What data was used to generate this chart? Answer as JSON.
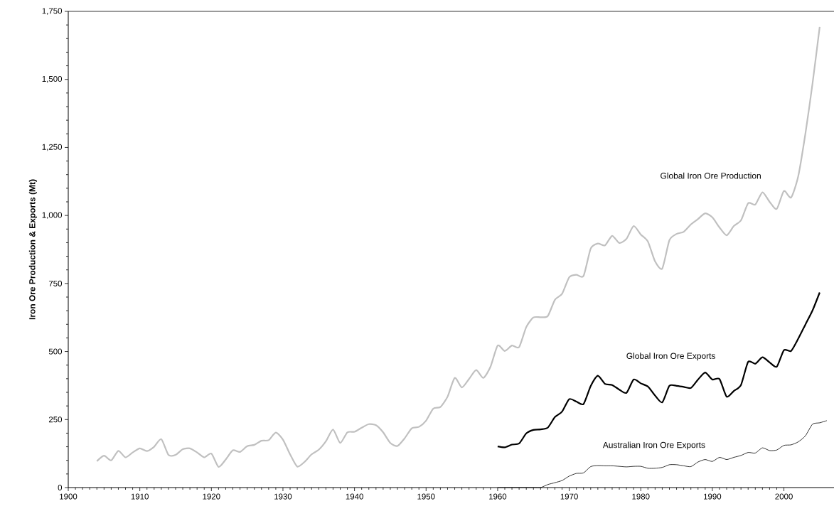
{
  "chart_data": {
    "type": "line",
    "ylabel": "Iron Ore Production & Exports (Mt)",
    "xlim": [
      1900,
      2007
    ],
    "xticks": [
      1900,
      1910,
      1920,
      1930,
      1940,
      1950,
      1960,
      1970,
      1980,
      1990,
      2000
    ],
    "ylim": [
      0,
      1750
    ],
    "yticks": [
      {
        "value": 0,
        "label": "0"
      },
      {
        "value": 250,
        "label": "250"
      },
      {
        "value": 500,
        "label": "500"
      },
      {
        "value": 750,
        "label": "750"
      },
      {
        "value": 1000,
        "label": "1,000"
      },
      {
        "value": 1250,
        "label": "1,250"
      },
      {
        "value": 1500,
        "label": "1,500"
      },
      {
        "value": 1750,
        "label": "1,750"
      }
    ],
    "grid": false,
    "legend": false,
    "marker": "none",
    "line_style": "solid",
    "series": [
      {
        "name": "Global Iron Ore Production",
        "color": "#c0c0c0",
        "x": [
          1904,
          1905,
          1906,
          1907,
          1908,
          1909,
          1910,
          1911,
          1912,
          1913,
          1914,
          1915,
          1916,
          1917,
          1918,
          1919,
          1920,
          1921,
          1922,
          1923,
          1924,
          1925,
          1926,
          1927,
          1928,
          1929,
          1930,
          1931,
          1932,
          1933,
          1934,
          1935,
          1936,
          1937,
          1938,
          1939,
          1940,
          1941,
          1942,
          1943,
          1944,
          1945,
          1946,
          1947,
          1948,
          1949,
          1950,
          1951,
          1952,
          1953,
          1954,
          1955,
          1956,
          1957,
          1958,
          1959,
          1960,
          1961,
          1962,
          1963,
          1964,
          1965,
          1966,
          1967,
          1968,
          1969,
          1970,
          1971,
          1972,
          1973,
          1974,
          1975,
          1976,
          1977,
          1978,
          1979,
          1980,
          1981,
          1982,
          1983,
          1984,
          1985,
          1986,
          1987,
          1988,
          1989,
          1990,
          1991,
          1992,
          1993,
          1994,
          1995,
          1996,
          1997,
          1998,
          1999,
          2000,
          2001,
          2002,
          2003,
          2004,
          2005
        ],
        "values": [
          97,
          117,
          100,
          135,
          111,
          129,
          144,
          134,
          150,
          178,
          120,
          120,
          141,
          144,
          129,
          111,
          125,
          76,
          103,
          137,
          131,
          152,
          157,
          172,
          174,
          202,
          176,
          122,
          77,
          94,
          122,
          139,
          170,
          213,
          164,
          203,
          205,
          220,
          233,
          229,
          203,
          164,
          153,
          181,
          218,
          223,
          246,
          290,
          296,
          334,
          403,
          368,
          399,
          432,
          403,
          444,
          522,
          502,
          522,
          516,
          590,
          625,
          626,
          630,
          690,
          712,
          773,
          782,
          778,
          878,
          897,
          890,
          925,
          899,
          914,
          961,
          930,
          904,
          831,
          805,
          909,
          932,
          940,
          967,
          987,
          1008,
          993,
          956,
          927,
          961,
          982,
          1045,
          1040,
          1085,
          1050,
          1024,
          1090,
          1066,
          1144,
          1300,
          1485,
          1693
        ]
      },
      {
        "name": "Global Iron Ore Exports",
        "color": "#000000",
        "x": [
          1960,
          1961,
          1962,
          1963,
          1964,
          1965,
          1966,
          1967,
          1968,
          1969,
          1970,
          1971,
          1972,
          1973,
          1974,
          1975,
          1976,
          1977,
          1978,
          1979,
          1980,
          1981,
          1982,
          1983,
          1984,
          1985,
          1986,
          1987,
          1988,
          1989,
          1990,
          1991,
          1992,
          1993,
          1994,
          1995,
          1996,
          1997,
          1998,
          1999,
          2000,
          2001,
          2002,
          2003,
          2004,
          2005
        ],
        "values": [
          151,
          148,
          158,
          162,
          199,
          212,
          214,
          220,
          259,
          279,
          325,
          316,
          307,
          373,
          411,
          381,
          377,
          360,
          348,
          397,
          383,
          371,
          338,
          313,
          374,
          374,
          370,
          366,
          397,
          423,
          397,
          399,
          334,
          355,
          377,
          462,
          455,
          479,
          460,
          444,
          505,
          502,
          547,
          599,
          651,
          717
        ]
      },
      {
        "name": "Australian Iron Ore Exports",
        "color": "#000000",
        "x": [
          1960,
          1961,
          1962,
          1963,
          1964,
          1965,
          1966,
          1967,
          1968,
          1969,
          1970,
          1971,
          1972,
          1973,
          1974,
          1975,
          1976,
          1977,
          1978,
          1979,
          1980,
          1981,
          1982,
          1983,
          1984,
          1985,
          1986,
          1987,
          1988,
          1989,
          1990,
          1991,
          1992,
          1993,
          1994,
          1995,
          1996,
          1997,
          1998,
          1999,
          2000,
          2001,
          2002,
          2003,
          2004,
          2005,
          2006
        ],
        "values": [
          0,
          0,
          0,
          0,
          0,
          0,
          0,
          11,
          18,
          26,
          42,
          52,
          54,
          77,
          81,
          80,
          80,
          78,
          76,
          78,
          78,
          71,
          71,
          74,
          84,
          84,
          80,
          77,
          94,
          103,
          96,
          111,
          103,
          111,
          118,
          129,
          127,
          146,
          136,
          138,
          155,
          157,
          168,
          190,
          233,
          238,
          246
        ]
      }
    ]
  }
}
